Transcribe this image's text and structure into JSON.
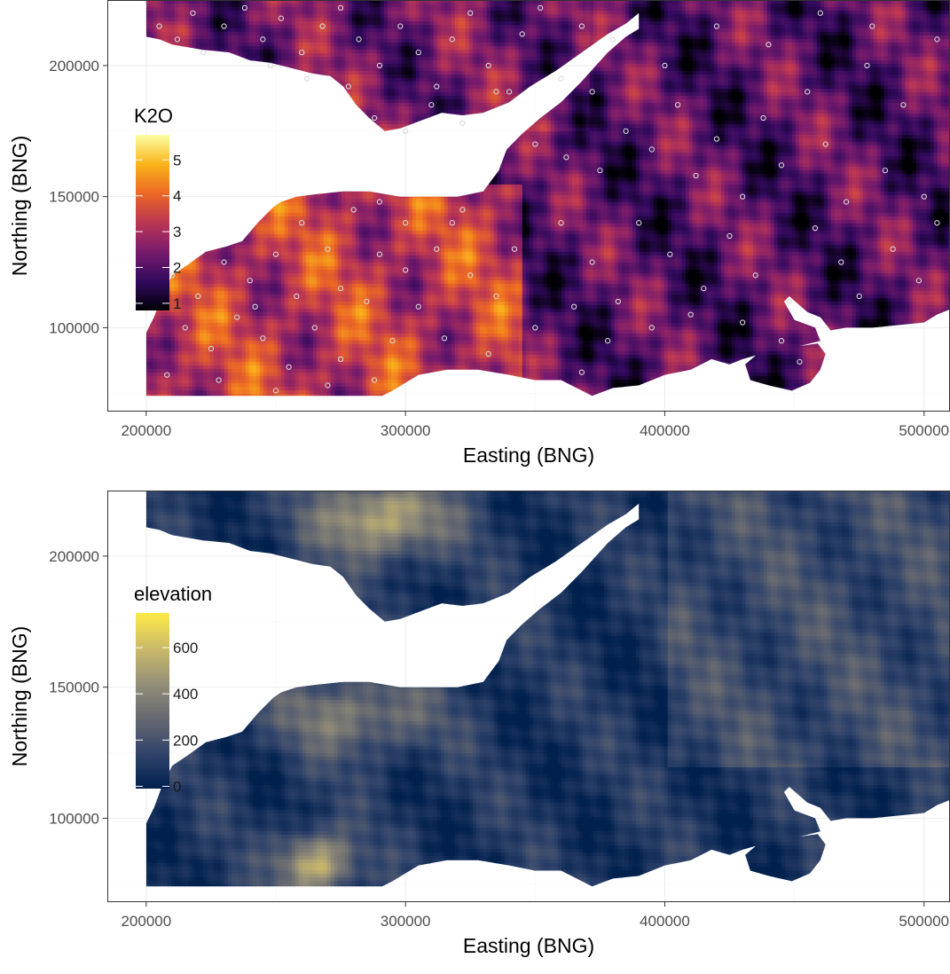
{
  "chart_data": [
    {
      "type": "heatmap",
      "title": "",
      "xlabel": "Easting (BNG)",
      "ylabel": "Northing (BNG)",
      "xlim": [
        185000,
        510000
      ],
      "ylim": [
        68000,
        225000
      ],
      "x_ticks": [
        200000,
        300000,
        400000,
        500000
      ],
      "y_ticks": [
        100000,
        150000,
        200000
      ],
      "x_tick_labels": [
        "200000",
        "300000",
        "400000",
        "500000"
      ],
      "y_tick_labels": [
        "100000",
        "150000",
        "200000"
      ],
      "grid": true,
      "legend": {
        "title": "K2O",
        "placement": "left-inside",
        "breaks": [
          1,
          2,
          3,
          4,
          5
        ],
        "break_labels": [
          "1",
          "2",
          "3",
          "4",
          "5"
        ],
        "range": [
          0.8,
          5.7
        ],
        "colors": [
          "#000004",
          "#320a5e",
          "#781b6c",
          "#bb3654",
          "#ec6824",
          "#fbb41a",
          "#fcffa4"
        ]
      },
      "value_ranges": {
        "north_zone": [
          1.5,
          3.5
        ],
        "south_west_zone": [
          2.5,
          4.8
        ],
        "east_zone": [
          1.2,
          3.2
        ]
      },
      "sample_points": {
        "marker": "hollow circle",
        "color": "#d9d9d9",
        "coordinates": [
          [
            205000,
            215000
          ],
          [
            212000,
            210000
          ],
          [
            218000,
            220000
          ],
          [
            222000,
            205000
          ],
          [
            230000,
            215000
          ],
          [
            238000,
            222000
          ],
          [
            245000,
            210000
          ],
          [
            252000,
            218000
          ],
          [
            260000,
            205000
          ],
          [
            268000,
            215000
          ],
          [
            275000,
            222000
          ],
          [
            282000,
            210000
          ],
          [
            290000,
            200000
          ],
          [
            298000,
            215000
          ],
          [
            305000,
            205000
          ],
          [
            312000,
            192000
          ],
          [
            318000,
            210000
          ],
          [
            325000,
            220000
          ],
          [
            332000,
            200000
          ],
          [
            340000,
            190000
          ],
          [
            345000,
            212000
          ],
          [
            352000,
            222000
          ],
          [
            360000,
            195000
          ],
          [
            368000,
            215000
          ],
          [
            288000,
            180000
          ],
          [
            300000,
            175000
          ],
          [
            310000,
            185000
          ],
          [
            322000,
            178000
          ],
          [
            335000,
            190000
          ],
          [
            262000,
            195000
          ],
          [
            278000,
            192000
          ],
          [
            248000,
            200000
          ],
          [
            350000,
            170000
          ],
          [
            362000,
            165000
          ],
          [
            375000,
            160000
          ],
          [
            385000,
            175000
          ],
          [
            395000,
            168000
          ],
          [
            405000,
            185000
          ],
          [
            412000,
            158000
          ],
          [
            420000,
            172000
          ],
          [
            430000,
            150000
          ],
          [
            438000,
            180000
          ],
          [
            445000,
            162000
          ],
          [
            455000,
            190000
          ],
          [
            462000,
            170000
          ],
          [
            470000,
            148000
          ],
          [
            478000,
            200000
          ],
          [
            485000,
            160000
          ],
          [
            492000,
            185000
          ],
          [
            500000,
            150000
          ],
          [
            505000,
            210000
          ],
          [
            480000,
            215000
          ],
          [
            460000,
            220000
          ],
          [
            440000,
            208000
          ],
          [
            420000,
            215000
          ],
          [
            400000,
            200000
          ],
          [
            380000,
            210000
          ],
          [
            372000,
            190000
          ],
          [
            390000,
            140000
          ],
          [
            402000,
            128000
          ],
          [
            415000,
            115000
          ],
          [
            425000,
            135000
          ],
          [
            435000,
            120000
          ],
          [
            448000,
            110000
          ],
          [
            458000,
            138000
          ],
          [
            468000,
            125000
          ],
          [
            475000,
            112000
          ],
          [
            488000,
            130000
          ],
          [
            498000,
            118000
          ],
          [
            505000,
            140000
          ],
          [
            360000,
            140000
          ],
          [
            372000,
            125000
          ],
          [
            382000,
            110000
          ],
          [
            395000,
            100000
          ],
          [
            410000,
            105000
          ],
          [
            430000,
            102000
          ],
          [
            445000,
            95000
          ],
          [
            452000,
            87000
          ],
          [
            342000,
            130000
          ],
          [
            335000,
            112000
          ],
          [
            350000,
            100000
          ],
          [
            365000,
            108000
          ],
          [
            378000,
            95000
          ],
          [
            368000,
            83000
          ],
          [
            322000,
            145000
          ],
          [
            312000,
            130000
          ],
          [
            300000,
            140000
          ],
          [
            290000,
            128000
          ],
          [
            280000,
            145000
          ],
          [
            270000,
            130000
          ],
          [
            260000,
            140000
          ],
          [
            250000,
            128000
          ],
          [
            240000,
            118000
          ],
          [
            230000,
            125000
          ],
          [
            220000,
            112000
          ],
          [
            210000,
            120000
          ],
          [
            215000,
            100000
          ],
          [
            225000,
            92000
          ],
          [
            235000,
            104000
          ],
          [
            245000,
            96000
          ],
          [
            255000,
            85000
          ],
          [
            265000,
            100000
          ],
          [
            275000,
            88000
          ],
          [
            285000,
            110000
          ],
          [
            295000,
            95000
          ],
          [
            305000,
            108000
          ],
          [
            315000,
            96000
          ],
          [
            325000,
            120000
          ],
          [
            332000,
            90000
          ],
          [
            288000,
            80000
          ],
          [
            270000,
            78000
          ],
          [
            250000,
            76000
          ],
          [
            228000,
            80000
          ],
          [
            208000,
            82000
          ],
          [
            318000,
            140000
          ],
          [
            290000,
            148000
          ],
          [
            275000,
            115000
          ],
          [
            258000,
            112000
          ],
          [
            242000,
            108000
          ],
          [
            300000,
            122000
          ]
        ]
      }
    },
    {
      "type": "heatmap",
      "title": "",
      "xlabel": "Easting (BNG)",
      "ylabel": "Northing (BNG)",
      "xlim": [
        185000,
        510000
      ],
      "ylim": [
        68000,
        225000
      ],
      "x_ticks": [
        200000,
        300000,
        400000,
        500000
      ],
      "y_ticks": [
        100000,
        150000,
        200000
      ],
      "x_tick_labels": [
        "200000",
        "300000",
        "400000",
        "500000"
      ],
      "y_tick_labels": [
        "100000",
        "150000",
        "200000"
      ],
      "grid": true,
      "legend": {
        "title": "elevation",
        "placement": "left-inside",
        "breaks": [
          0,
          200,
          400,
          600
        ],
        "break_labels": [
          "0",
          "200",
          "400",
          "600"
        ],
        "range": [
          -10,
          750
        ],
        "colors": [
          "#00204d",
          "#31446b",
          "#666970",
          "#958f78",
          "#cbba69",
          "#ffea46"
        ]
      },
      "value_ranges": {
        "lowlands": [
          0,
          150
        ],
        "uplands": [
          300,
          700
        ]
      }
    }
  ]
}
